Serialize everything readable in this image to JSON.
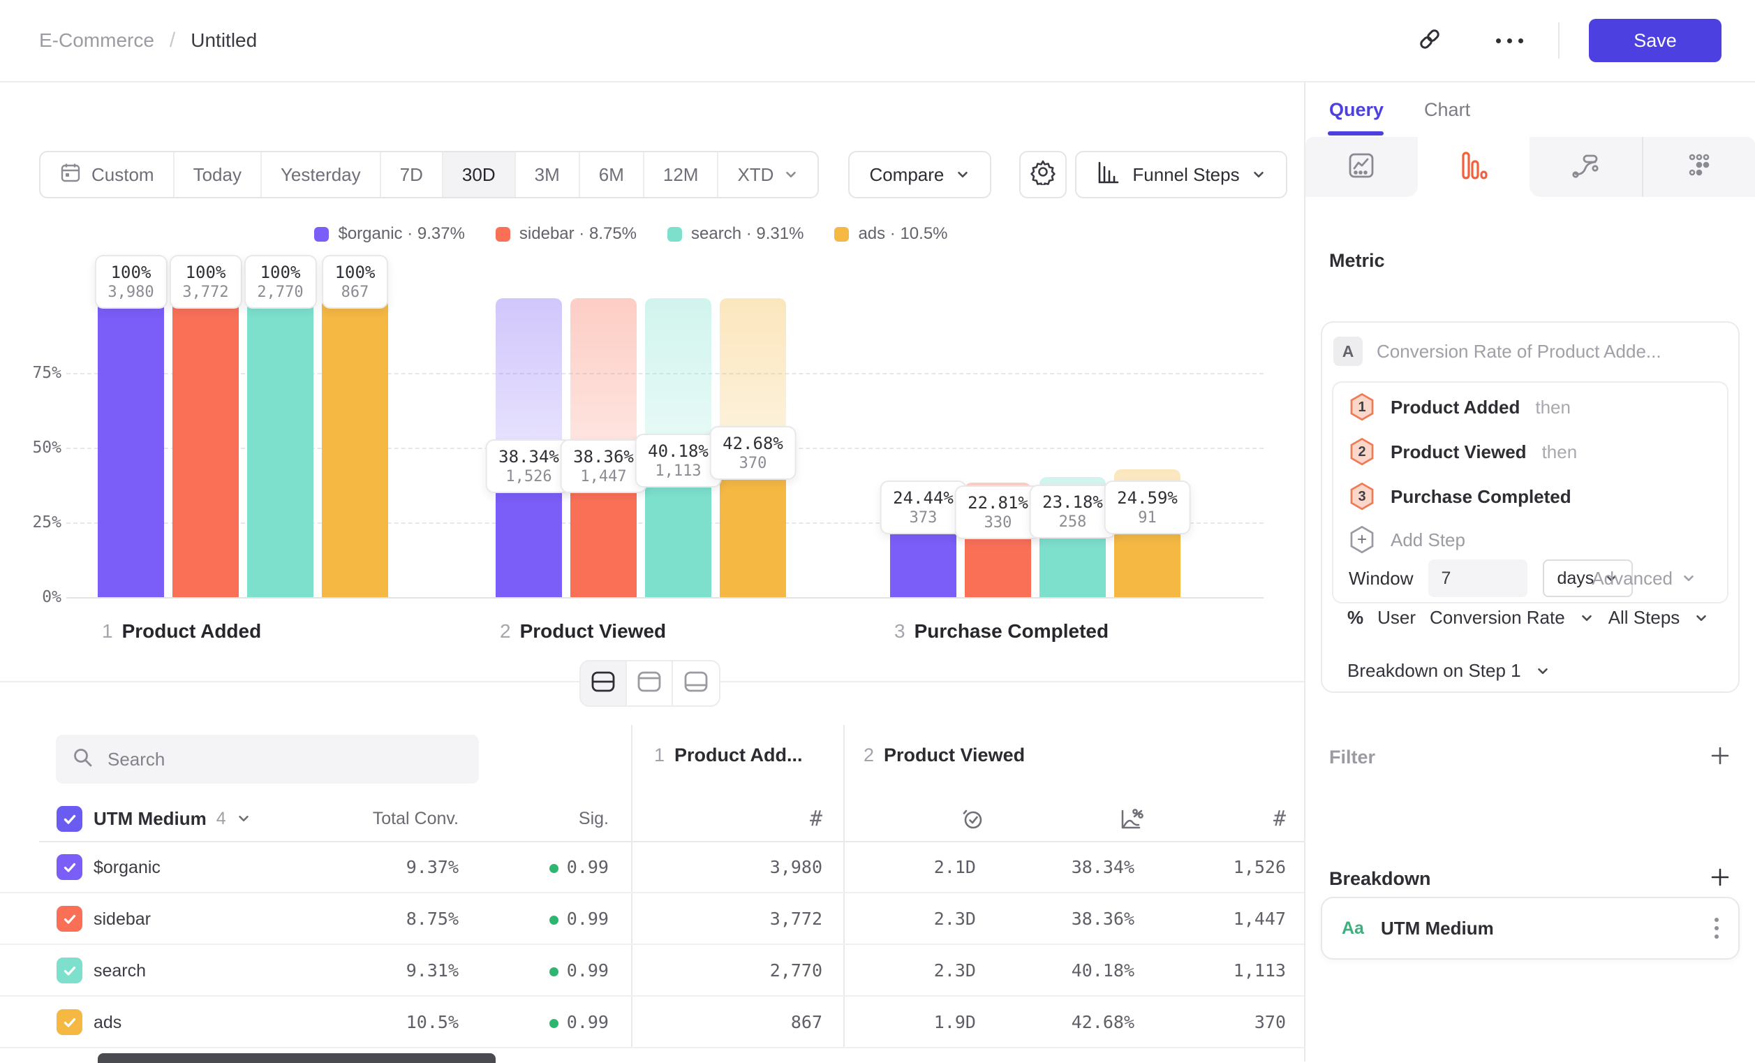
{
  "header": {
    "breadcrumb": [
      "E-Commerce",
      "Untitled"
    ],
    "breadcrumb_separator": "/",
    "save": "Save"
  },
  "toolbar": {
    "ranges": [
      {
        "label": "Custom",
        "icon": "calendar",
        "selected": false
      },
      {
        "label": "Today",
        "selected": false
      },
      {
        "label": "Yesterday",
        "selected": false
      },
      {
        "label": "7D",
        "selected": false
      },
      {
        "label": "30D",
        "selected": true
      },
      {
        "label": "3M",
        "selected": false
      },
      {
        "label": "6M",
        "selected": false
      },
      {
        "label": "12M",
        "selected": false
      },
      {
        "label": "XTD",
        "selected": false,
        "chevron": true
      }
    ],
    "compare": "Compare",
    "view_label": "Funnel Steps"
  },
  "chart_data": {
    "type": "bar",
    "subtype": "funnel-steps",
    "title": "",
    "ylim": [
      0,
      100
    ],
    "grid": "dashed-horizontal",
    "y_ticks": [
      {
        "label": "75%",
        "value": 75
      },
      {
        "label": "50%",
        "value": 50
      },
      {
        "label": "25%",
        "value": 25
      },
      {
        "label": "0%",
        "value": 0
      }
    ],
    "steps": [
      {
        "num": "1",
        "label": "Product Added"
      },
      {
        "num": "2",
        "label": "Product Viewed"
      },
      {
        "num": "3",
        "label": "Purchase Completed"
      }
    ],
    "series": [
      {
        "name": "$organic",
        "color": "#7b5df7",
        "overall_rate": "9.37%",
        "pct": [
          100,
          38.34,
          24.44
        ],
        "pct_labels": [
          "100%",
          "38.34%",
          "24.44%"
        ],
        "counts": [
          3980,
          1526,
          373
        ],
        "count_labels": [
          "3,980",
          "1,526",
          "373"
        ]
      },
      {
        "name": "sidebar",
        "color": "#f97057",
        "overall_rate": "8.75%",
        "pct": [
          100,
          38.36,
          22.81
        ],
        "pct_labels": [
          "100%",
          "38.36%",
          "22.81%"
        ],
        "counts": [
          3772,
          1447,
          330
        ],
        "count_labels": [
          "3,772",
          "1,447",
          "330"
        ]
      },
      {
        "name": "search",
        "color": "#7de0cd",
        "overall_rate": "9.31%",
        "pct": [
          100,
          40.18,
          23.18
        ],
        "pct_labels": [
          "100%",
          "40.18%",
          "23.18%"
        ],
        "counts": [
          2770,
          1113,
          258
        ],
        "count_labels": [
          "2,770",
          "1,113",
          "258"
        ]
      },
      {
        "name": "ads",
        "color": "#f4b843",
        "overall_rate": "10.5%",
        "pct": [
          100,
          42.68,
          24.59
        ],
        "pct_labels": [
          "100%",
          "42.68%",
          "24.59%"
        ],
        "counts": [
          867,
          370,
          91
        ],
        "count_labels": [
          "867",
          "370",
          "91"
        ]
      }
    ],
    "legend_position": "top-center",
    "legend_separator": "·"
  },
  "table": {
    "search_placeholder": "Search",
    "group_label": "UTM Medium",
    "group_count": "4",
    "total_col": "Total Conv.",
    "sig_col": "Sig.",
    "step1_num": "1",
    "step1_label": "Product Add...",
    "step2_num": "2",
    "step2_label": "Product Viewed",
    "rows": [
      {
        "name": "$organic",
        "color": "#7b5df7",
        "total": "9.37%",
        "sig": "0.99",
        "step1_count": "3,980",
        "time": "2.1D",
        "rate": "38.34%",
        "step2_count": "1,526"
      },
      {
        "name": "sidebar",
        "color": "#f97057",
        "total": "8.75%",
        "sig": "0.99",
        "step1_count": "3,772",
        "time": "2.3D",
        "rate": "38.36%",
        "step2_count": "1,447"
      },
      {
        "name": "search",
        "color": "#7de0cd",
        "total": "9.31%",
        "sig": "0.99",
        "step1_count": "2,770",
        "time": "2.3D",
        "rate": "40.18%",
        "step2_count": "1,113"
      },
      {
        "name": "ads",
        "color": "#f4b843",
        "total": "10.5%",
        "sig": "0.99",
        "step1_count": "867",
        "time": "1.9D",
        "rate": "42.68%",
        "step2_count": "370"
      }
    ]
  },
  "panel": {
    "tab_query": "Query",
    "tab_chart": "Chart",
    "metric_heading": "Metric",
    "metric_letter": "A",
    "metric_title": "Conversion Rate of Product Adde...",
    "steps": [
      {
        "num": "1",
        "name": "Product Added",
        "suffix": "then"
      },
      {
        "num": "2",
        "name": "Product Viewed",
        "suffix": "then"
      },
      {
        "num": "3",
        "name": "Purchase Completed",
        "suffix": ""
      }
    ],
    "add_step": "Add Step",
    "window_label": "Window",
    "window_value": "7",
    "window_unit": "days",
    "advanced": "Advanced",
    "measure_pct": "%",
    "measure_user": "User",
    "measure_metric": "Conversion Rate",
    "measure_steps": "All Steps",
    "breakdown_on": "Breakdown on Step 1",
    "filter_heading": "Filter",
    "breakdown_heading": "Breakdown",
    "breakdown_type": "Aa",
    "breakdown_value": "UTM Medium",
    "accent_color": "#4c40e0",
    "funnel_icon_color": "#f2613c"
  }
}
